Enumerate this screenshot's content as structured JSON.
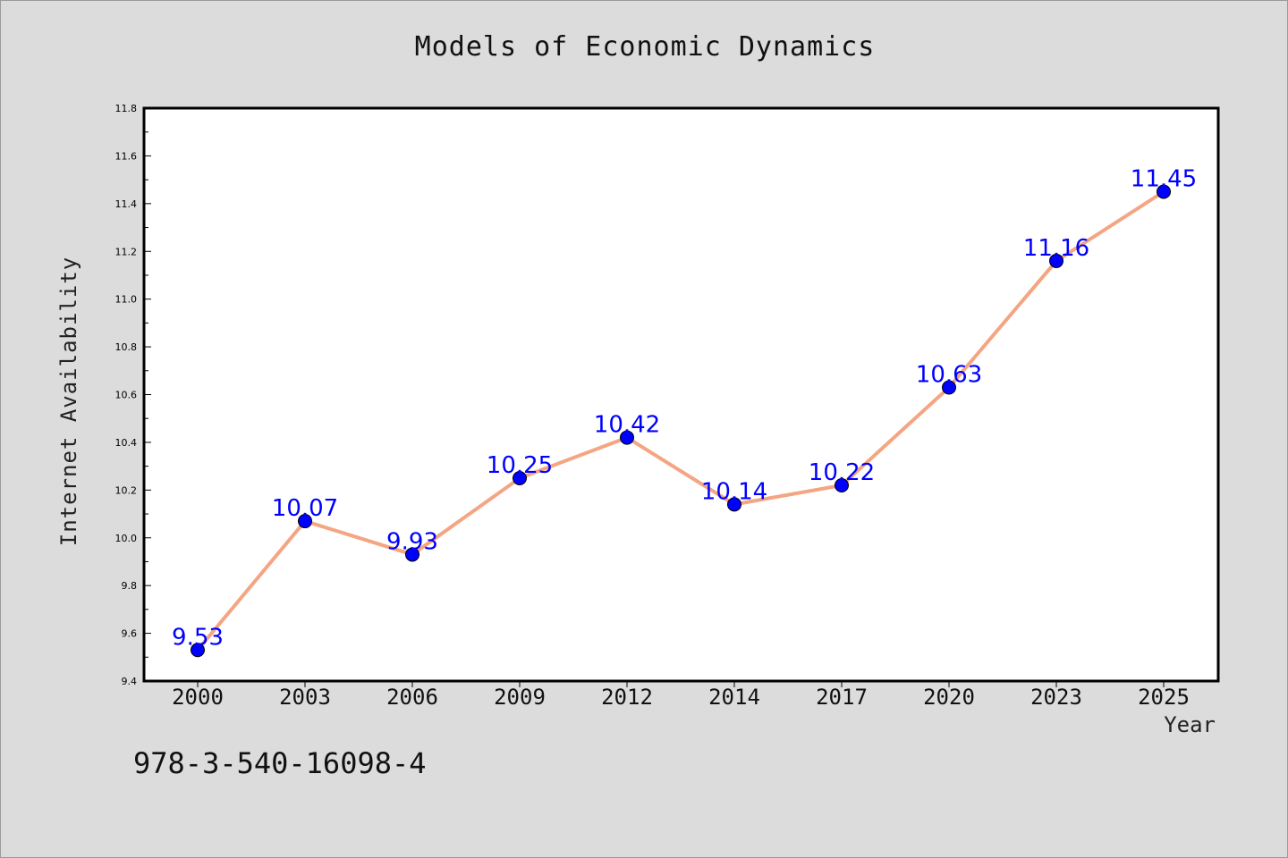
{
  "chart_data": {
    "type": "line",
    "title": "Models of Economic Dynamics",
    "xlabel": "Year",
    "ylabel": "Internet Availability",
    "categories": [
      "2000",
      "2003",
      "2006",
      "2009",
      "2012",
      "2014",
      "2017",
      "2020",
      "2023",
      "2025"
    ],
    "series": [
      {
        "values": [
          9.53,
          10.07,
          9.93,
          10.25,
          10.42,
          10.14,
          10.22,
          10.63,
          11.16,
          11.45
        ],
        "line_color": "#f4a582",
        "marker_color": "#0000ff",
        "label_color": "#0000ff"
      }
    ],
    "ylim": [
      9.4,
      11.8
    ],
    "y_ticks": [
      "9.4",
      "9.6",
      "9.8",
      "10.0",
      "10.2",
      "10.4",
      "10.6",
      "10.8",
      "11.0",
      "11.2",
      "11.4",
      "11.6",
      "11.8"
    ],
    "y_tick_values": [
      9.4,
      9.6,
      9.8,
      10.0,
      10.2,
      10.4,
      10.6,
      10.8,
      11.0,
      11.2,
      11.4,
      11.6,
      11.8
    ],
    "y_minor_step": 0.1,
    "grid": false,
    "legend": false,
    "data_labels": true
  },
  "footer": {
    "code": "978-3-540-16098-4"
  },
  "colors": {
    "background": "#dcdcdc",
    "plot_background": "#ffffff",
    "axis": "#000000"
  }
}
